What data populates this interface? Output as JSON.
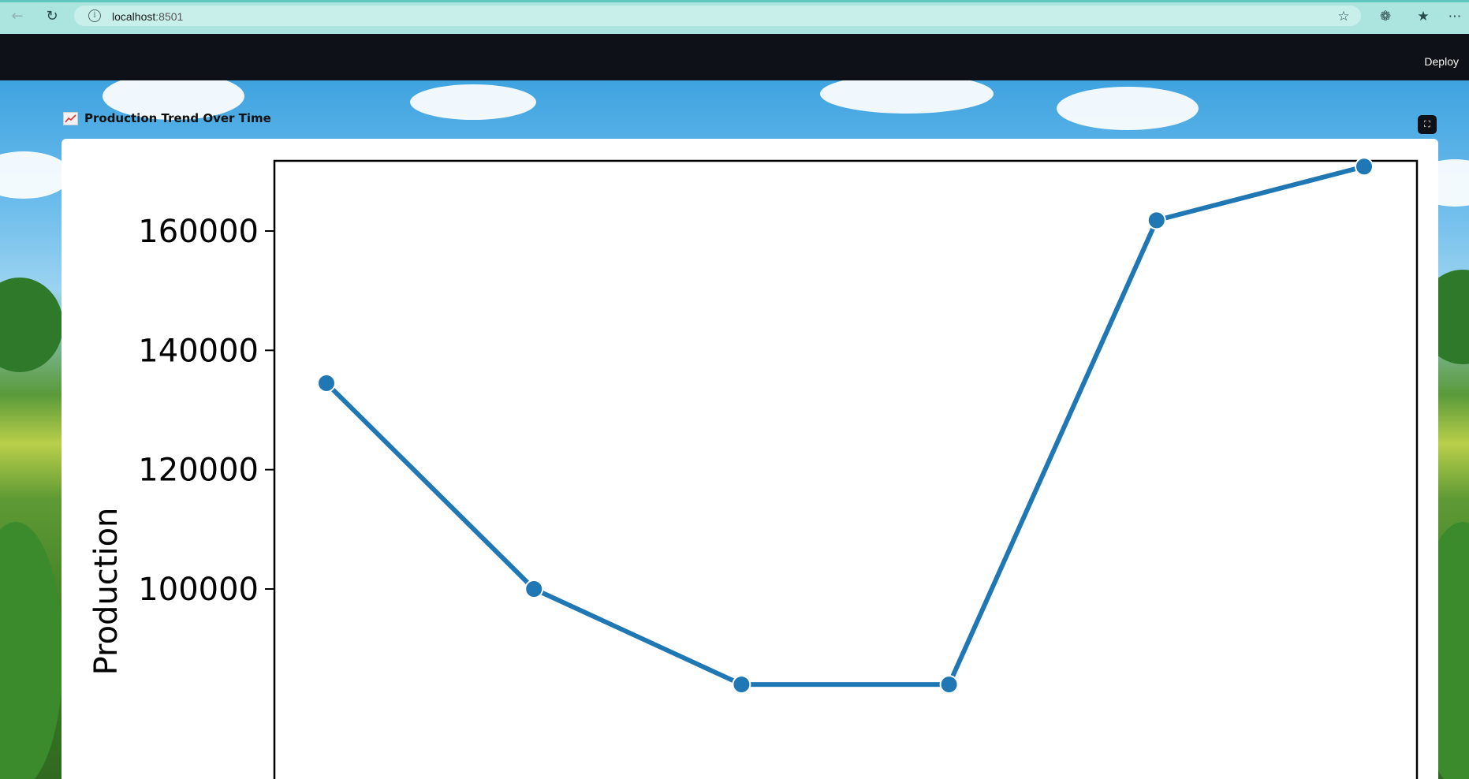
{
  "browser": {
    "url_host": "localhost",
    "url_port": ":8501"
  },
  "header": {
    "deploy_label": "Deploy"
  },
  "chart_section": {
    "title": "Production Trend Over Time"
  },
  "chart_data": {
    "type": "line",
    "title": "",
    "xlabel": "",
    "ylabel": "Production",
    "yticks": [
      100000,
      120000,
      140000,
      160000
    ],
    "ylim": [
      88000,
      176000
    ],
    "grid": false,
    "line_color": "#1f77b4",
    "series": [
      {
        "values": [
          134500,
          100000,
          84000,
          84000,
          161800,
          170800
        ]
      }
    ]
  }
}
